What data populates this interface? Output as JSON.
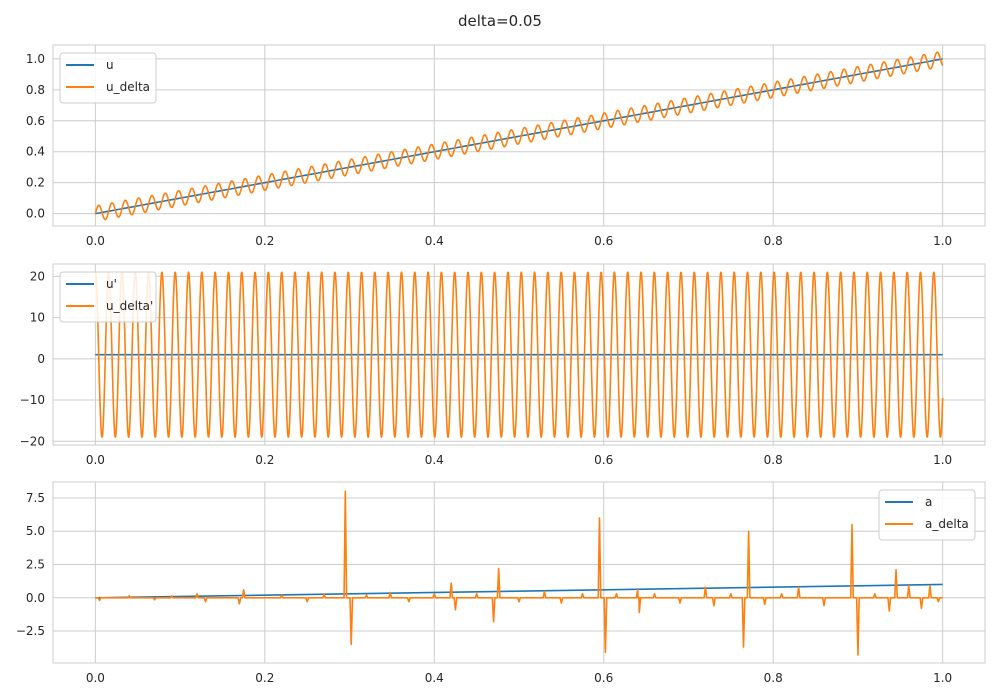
{
  "figure": {
    "title": "delta=0.05",
    "background": "#ffffff",
    "grid_color": "#cccccc",
    "spine_color": "#cccccc",
    "legend_border": "#cccccc"
  },
  "chart_data": [
    {
      "type": "line",
      "xlim": [
        -0.05,
        1.05
      ],
      "ylim": [
        -0.08,
        1.09
      ],
      "xticks": [
        0.0,
        0.2,
        0.4,
        0.6,
        0.8,
        1.0
      ],
      "xtick_labels": [
        "0.0",
        "0.2",
        "0.4",
        "0.6",
        "0.8",
        "1.0"
      ],
      "yticks": [
        0.0,
        0.2,
        0.4,
        0.6,
        0.8,
        1.0
      ],
      "ytick_labels": [
        "0.0",
        "0.2",
        "0.4",
        "0.6",
        "0.8",
        "1.0"
      ],
      "grid": true,
      "legend": "upper-left",
      "series": [
        {
          "name": "u",
          "color": "#1f77b4",
          "x_range": [
            0,
            1
          ],
          "points": 400,
          "formula": "x"
        },
        {
          "name": "u_delta",
          "color": "#ff7f0e",
          "x_range": [
            0,
            1
          ],
          "points": 2000,
          "formula": "x + 0.05*sin(x/0.05^2)",
          "delta": 0.05
        }
      ]
    },
    {
      "type": "line",
      "xlim": [
        -0.05,
        1.05
      ],
      "ylim": [
        -20.9,
        23.0
      ],
      "xticks": [
        0.0,
        0.2,
        0.4,
        0.6,
        0.8,
        1.0
      ],
      "xtick_labels": [
        "0.0",
        "0.2",
        "0.4",
        "0.6",
        "0.8",
        "1.0"
      ],
      "yticks": [
        -20,
        -10,
        0,
        10,
        20
      ],
      "ytick_labels": [
        "−20",
        "−10",
        "0",
        "10",
        "20"
      ],
      "grid": true,
      "legend": "upper-left",
      "series": [
        {
          "name": "u'",
          "color": "#1f77b4",
          "x_range": [
            0,
            1
          ],
          "points": 400,
          "formula": "1"
        },
        {
          "name": "u_delta'",
          "color": "#ff7f0e",
          "x_range": [
            0,
            1
          ],
          "points": 3000,
          "formula": "1 + (1/0.05)*cos(x/0.05^2)",
          "delta": 0.05
        }
      ]
    },
    {
      "type": "line",
      "xlim": [
        -0.05,
        1.05
      ],
      "ylim": [
        -4.9,
        8.7
      ],
      "xticks": [
        0.0,
        0.2,
        0.4,
        0.6,
        0.8,
        1.0
      ],
      "xtick_labels": [
        "0.0",
        "0.2",
        "0.4",
        "0.6",
        "0.8",
        "1.0"
      ],
      "yticks": [
        -2.5,
        0.0,
        2.5,
        5.0,
        7.5
      ],
      "ytick_labels": [
        "−2.5",
        "0.0",
        "2.5",
        "5.0",
        "7.5"
      ],
      "grid": true,
      "legend": "upper-right",
      "series": [
        {
          "name": "a",
          "color": "#1f77b4",
          "x": [
            0,
            1
          ],
          "y": [
            0,
            1
          ]
        },
        {
          "name": "a_delta",
          "color": "#ff7f0e",
          "baseline": 0,
          "spikes": [
            {
              "x": 0.005,
              "y": -0.2
            },
            {
              "x": 0.04,
              "y": 0.15
            },
            {
              "x": 0.07,
              "y": -0.15
            },
            {
              "x": 0.09,
              "y": 0.15
            },
            {
              "x": 0.12,
              "y": 0.3
            },
            {
              "x": 0.13,
              "y": -0.3
            },
            {
              "x": 0.17,
              "y": -0.45
            },
            {
              "x": 0.175,
              "y": 0.6
            },
            {
              "x": 0.22,
              "y": 0.2
            },
            {
              "x": 0.25,
              "y": -0.3
            },
            {
              "x": 0.27,
              "y": 0.25
            },
            {
              "x": 0.295,
              "y": 8.0
            },
            {
              "x": 0.302,
              "y": -3.5
            },
            {
              "x": 0.32,
              "y": 0.2
            },
            {
              "x": 0.348,
              "y": 0.4
            },
            {
              "x": 0.37,
              "y": -0.3
            },
            {
              "x": 0.4,
              "y": 0.3
            },
            {
              "x": 0.42,
              "y": 1.1
            },
            {
              "x": 0.425,
              "y": -0.9
            },
            {
              "x": 0.45,
              "y": 0.3
            },
            {
              "x": 0.47,
              "y": -1.8
            },
            {
              "x": 0.476,
              "y": 2.2
            },
            {
              "x": 0.5,
              "y": -0.3
            },
            {
              "x": 0.53,
              "y": 0.5
            },
            {
              "x": 0.55,
              "y": -0.4
            },
            {
              "x": 0.575,
              "y": 0.3
            },
            {
              "x": 0.595,
              "y": 6.0
            },
            {
              "x": 0.602,
              "y": -4.1
            },
            {
              "x": 0.615,
              "y": 0.3
            },
            {
              "x": 0.64,
              "y": 0.6
            },
            {
              "x": 0.642,
              "y": -1.1
            },
            {
              "x": 0.66,
              "y": 0.3
            },
            {
              "x": 0.69,
              "y": -0.4
            },
            {
              "x": 0.72,
              "y": 0.8
            },
            {
              "x": 0.73,
              "y": -0.6
            },
            {
              "x": 0.75,
              "y": 0.3
            },
            {
              "x": 0.765,
              "y": -3.7
            },
            {
              "x": 0.771,
              "y": 5.0
            },
            {
              "x": 0.79,
              "y": -0.5
            },
            {
              "x": 0.81,
              "y": 0.3
            },
            {
              "x": 0.83,
              "y": 0.8
            },
            {
              "x": 0.86,
              "y": -0.6
            },
            {
              "x": 0.893,
              "y": 5.5
            },
            {
              "x": 0.9,
              "y": -4.3
            },
            {
              "x": 0.92,
              "y": 0.3
            },
            {
              "x": 0.937,
              "y": -1.0
            },
            {
              "x": 0.945,
              "y": 2.1
            },
            {
              "x": 0.96,
              "y": 0.9
            },
            {
              "x": 0.975,
              "y": -0.8
            },
            {
              "x": 0.985,
              "y": 0.9
            },
            {
              "x": 0.995,
              "y": -0.3
            }
          ]
        }
      ]
    }
  ]
}
